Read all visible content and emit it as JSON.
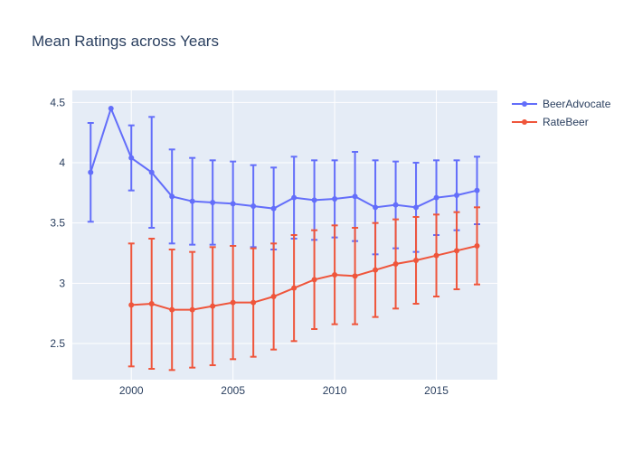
{
  "chart_data": {
    "type": "line",
    "title": "Mean Ratings across Years",
    "xlabel": "",
    "ylabel": "",
    "xlim": [
      1997.1,
      2018.0
    ],
    "ylim": [
      2.2,
      4.6
    ],
    "xticks": [
      2000,
      2005,
      2010,
      2015
    ],
    "xtick_labels": [
      "2000",
      "2005",
      "2010",
      "2015"
    ],
    "yticks": [
      2.5,
      3,
      3.5,
      4,
      4.5
    ],
    "ytick_labels": [
      "2.5",
      "3",
      "3.5",
      "4",
      "4.5"
    ],
    "grid": true,
    "legend_position": "top-right",
    "series": [
      {
        "name": "BeerAdvocate",
        "color": "#636efa",
        "x": [
          1998,
          1999,
          2000,
          2001,
          2002,
          2003,
          2004,
          2005,
          2006,
          2007,
          2008,
          2009,
          2010,
          2011,
          2012,
          2013,
          2014,
          2015,
          2016,
          2017
        ],
        "y": [
          3.92,
          4.45,
          4.04,
          3.92,
          3.72,
          3.68,
          3.67,
          3.66,
          3.64,
          3.62,
          3.71,
          3.69,
          3.7,
          3.72,
          3.63,
          3.65,
          3.63,
          3.71,
          3.73,
          3.77
        ],
        "error": [
          0.41,
          null,
          0.27,
          0.46,
          0.39,
          0.36,
          0.35,
          0.35,
          0.34,
          0.34,
          0.34,
          0.33,
          0.32,
          0.37,
          0.39,
          0.36,
          0.37,
          0.31,
          0.29,
          0.28
        ]
      },
      {
        "name": "RateBeer",
        "color": "#ef553b",
        "x": [
          2000,
          2001,
          2002,
          2003,
          2004,
          2005,
          2006,
          2007,
          2008,
          2009,
          2010,
          2011,
          2012,
          2013,
          2014,
          2015,
          2016,
          2017
        ],
        "y": [
          2.82,
          2.83,
          2.78,
          2.78,
          2.81,
          2.84,
          2.84,
          2.89,
          2.96,
          3.03,
          3.07,
          3.06,
          3.11,
          3.16,
          3.19,
          3.23,
          3.27,
          3.31
        ],
        "error": [
          0.51,
          0.54,
          0.5,
          0.48,
          0.49,
          0.47,
          0.45,
          0.44,
          0.44,
          0.41,
          0.41,
          0.4,
          0.39,
          0.37,
          0.36,
          0.34,
          0.32,
          0.32
        ]
      }
    ]
  }
}
